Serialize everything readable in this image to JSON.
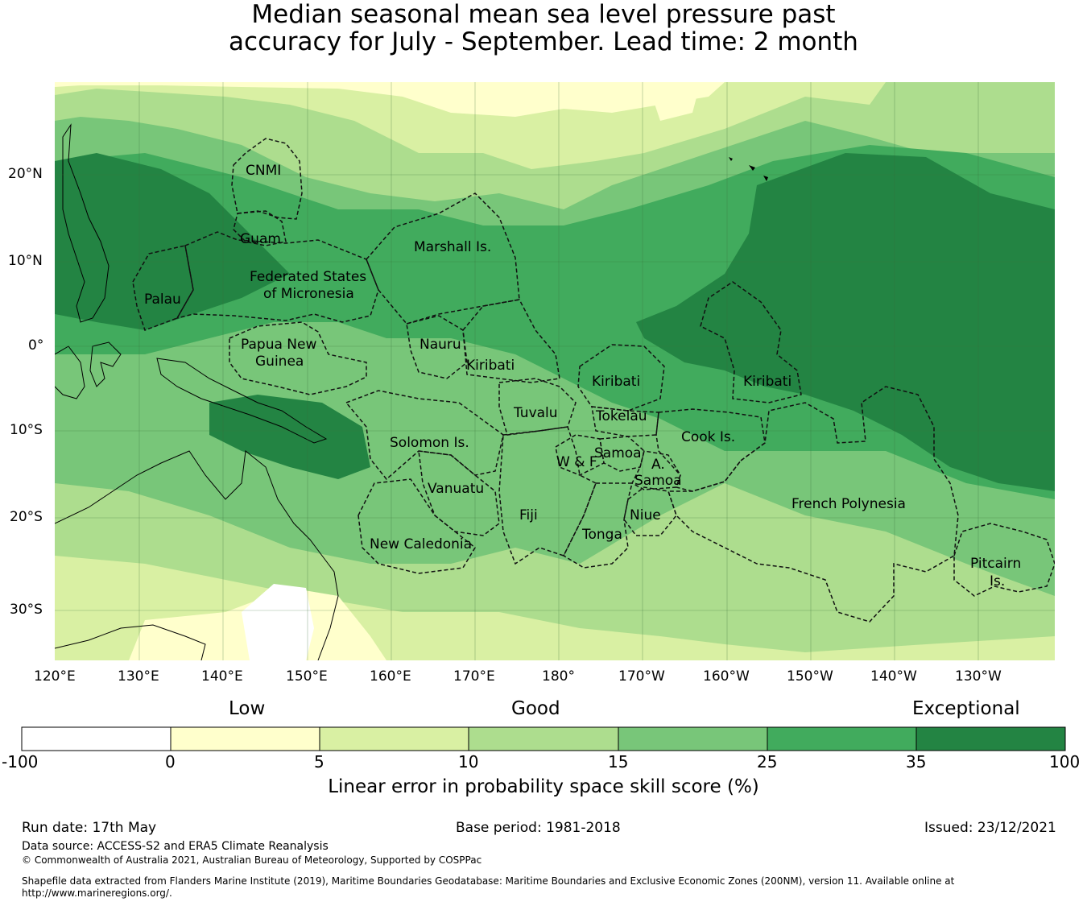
{
  "title": {
    "line1": "Median seasonal mean sea level pressure past",
    "line2": "accuracy for July - September. Lead time: 2 month"
  },
  "map": {
    "lon_labels": [
      "120°E",
      "130°E",
      "140°E",
      "150°E",
      "160°E",
      "170°E",
      "180°",
      "170°W",
      "160°W",
      "150°W",
      "140°W",
      "130°W"
    ],
    "lat_labels": [
      "20°N",
      "10°N",
      "0°",
      "10°S",
      "20°S",
      "30°S"
    ],
    "regions": [
      "CNMI",
      "Guam",
      "Marshall Is.",
      "Palau",
      "Federated States",
      "of Micronesia",
      "Papua New",
      "Guinea",
      "Nauru",
      "Kiribati",
      "Kiribati",
      "Kiribati",
      "Tuvalu",
      "Tokelau",
      "Cook Is.",
      "Solomon Is.",
      "W & F",
      "Samoa",
      "A.",
      "Samoa",
      "Vanuatu",
      "Fiji",
      "Niue",
      "Tonga",
      "New Caledonia",
      "French Polynesia",
      "Pitcairn",
      "Is."
    ]
  },
  "legend": {
    "categories": [
      "Low",
      "Good",
      "Exceptional"
    ],
    "ticks": [
      "-100",
      "0",
      "5",
      "10",
      "15",
      "25",
      "35",
      "100"
    ],
    "colors": [
      "#ffffff",
      "#ffffcc",
      "#d9f0a3",
      "#addd8e",
      "#78c679",
      "#41ab5d",
      "#238443"
    ],
    "label": "Linear error in probability space skill score (%)"
  },
  "footer": {
    "run_date": "Run date: 17th May",
    "base_period": "Base period: 1981-2018",
    "issued": "Issued: 23/12/2021",
    "data_source": "Data source: ACCESS-S2 and ERA5 Climate Reanalysis",
    "copyright": "© Commonwealth of Australia 2021, Australian Bureau of Meteorology, Supported by COSPPac",
    "shapefile_line1": "Shapefile data extracted from Flanders Marine Institute (2019), Maritime Boundaries Geodatabase: Maritime Boundaries and Exclusive Economic Zones (200NM), version 11. Available online at",
    "shapefile_line2": "http://www.marineregions.org/."
  }
}
